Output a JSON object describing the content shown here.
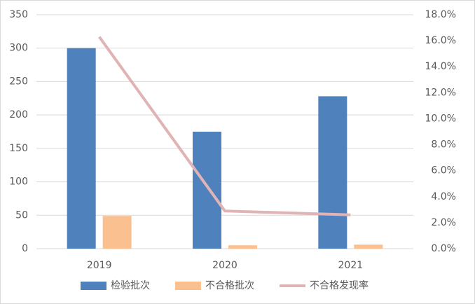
{
  "chart_data": {
    "type": "bar",
    "categories": [
      "2019",
      "2020",
      "2021"
    ],
    "series": [
      {
        "name": "检验批次",
        "type": "bar",
        "color": "#4f81bd",
        "values": [
          300,
          175,
          228
        ]
      },
      {
        "name": "不合格批次",
        "type": "bar",
        "color": "#fac090",
        "values": [
          49,
          5,
          6
        ]
      },
      {
        "name": "不合格发现率",
        "type": "line",
        "axis": "y2",
        "color": "#e0b4b4",
        "values": [
          16.3,
          2.9,
          2.6
        ]
      }
    ],
    "ylim": [
      0,
      350
    ],
    "yticks": [
      0,
      50,
      100,
      150,
      200,
      250,
      300,
      350
    ],
    "y2lim": [
      0,
      18
    ],
    "y2ticks": [
      {
        "value": 0,
        "label": "0.0%"
      },
      {
        "value": 2,
        "label": "2.0%"
      },
      {
        "value": 4,
        "label": "4.0%"
      },
      {
        "value": 6,
        "label": "6.0%"
      },
      {
        "value": 8,
        "label": "8.0%"
      },
      {
        "value": 10,
        "label": "10.0%"
      },
      {
        "value": 12,
        "label": "12.0%"
      },
      {
        "value": 14,
        "label": "14.0%"
      },
      {
        "value": 16,
        "label": "16.0%"
      },
      {
        "value": 18,
        "label": "18.0%"
      }
    ],
    "grid": true,
    "legend": "bottom"
  }
}
